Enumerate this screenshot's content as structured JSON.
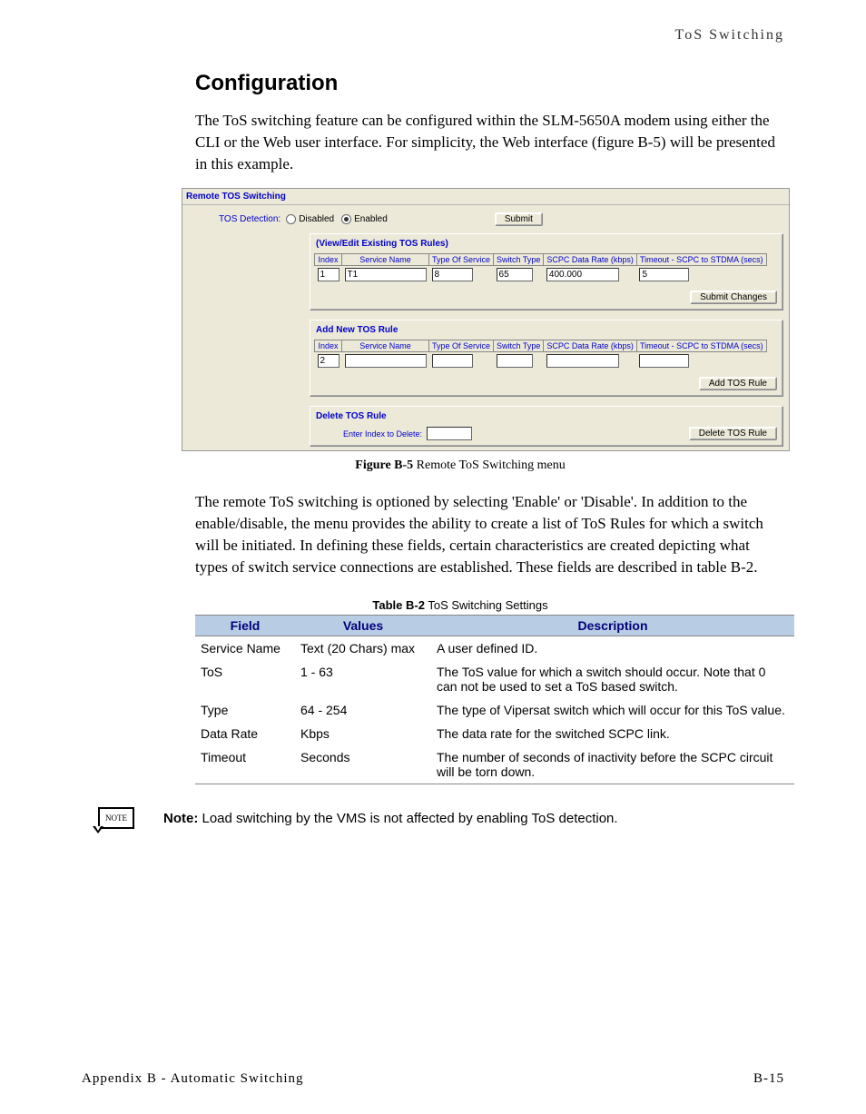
{
  "header": {
    "right": "ToS Switching"
  },
  "section_title": "Configuration",
  "para1": "The ToS switching feature can be configured within the SLM-5650A modem using either the CLI or the Web user interface. For simplicity, the Web interface (figure B-5) will be presented in this example.",
  "figure": {
    "title": "Remote TOS Switching",
    "detection_label": "TOS Detection:",
    "disabled": "Disabled",
    "enabled": "Enabled",
    "submit": "Submit",
    "view_edit_title": "(View/Edit Existing TOS Rules)",
    "headers": {
      "index": "Index",
      "service_name": "Service Name",
      "tos": "Type Of Service",
      "switch_type": "Switch Type",
      "data_rate": "SCPC Data Rate (kbps)",
      "timeout": "Timeout - SCPC to STDMA (secs)"
    },
    "existing": {
      "index": "1",
      "service_name": "T1",
      "tos": "8",
      "switch_type": "65",
      "data_rate": "400.000",
      "timeout": "5"
    },
    "submit_changes": "Submit Changes",
    "add_title": "Add New TOS Rule",
    "add": {
      "index": "2"
    },
    "add_btn": "Add TOS Rule",
    "delete_title": "Delete TOS Rule",
    "delete_label": "Enter Index to Delete:",
    "delete_btn": "Delete TOS Rule"
  },
  "figure_caption_bold": "Figure B-5",
  "figure_caption_rest": "  Remote ToS Switching menu",
  "para2": "The remote ToS switching is optioned by selecting 'Enable' or 'Disable'. In addition to the enable/disable, the menu provides the ability to create a list of ToS Rules for which a switch will be initiated. In defining these fields, certain characteristics are created depicting what types of switch service connections are established. These fields are described in table B-2.",
  "table_caption_bold": "Table B-2",
  "table_caption_rest": "  ToS Switching Settings",
  "table": {
    "headers": {
      "field": "Field",
      "values": "Values",
      "description": "Description"
    },
    "rows": [
      {
        "field": "Service Name",
        "values": "Text (20 Chars) max",
        "description": "A user defined ID."
      },
      {
        "field": "ToS",
        "values": "1 - 63",
        "description": "The ToS value for which a switch should occur. Note that 0 can not be used to set a ToS based switch."
      },
      {
        "field": "Type",
        "values": "64 - 254",
        "description": "The type of Vipersat switch which will occur for this ToS value."
      },
      {
        "field": "Data Rate",
        "values": "Kbps",
        "description": "The data rate for the switched SCPC link."
      },
      {
        "field": "Timeout",
        "values": "Seconds",
        "description": "The number of seconds of inactivity before the SCPC circuit will be torn down."
      }
    ]
  },
  "note_badge": "NOTE",
  "note_label": "Note:",
  "note_text": "  Load switching by the VMS is not affected by enabling ToS detection.",
  "footer": {
    "left": "Appendix B - Automatic Switching",
    "right": "B-15"
  }
}
